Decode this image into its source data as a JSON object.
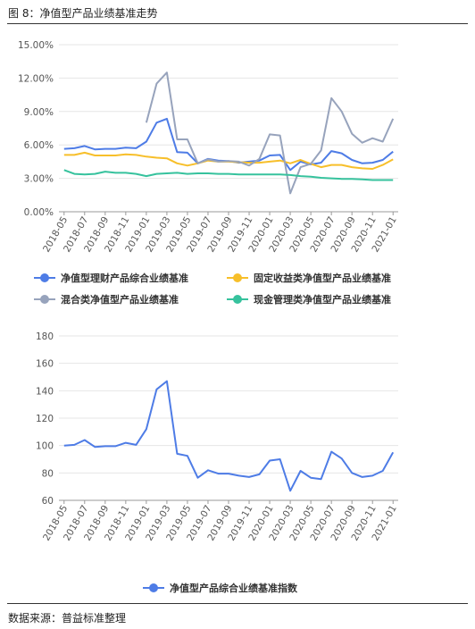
{
  "figure_title": "图 8：净值型产品业绩基准走势",
  "source": "数据来源：普益标准整理",
  "categories": [
    "2018-05",
    "2018-06",
    "2018-07",
    "2018-08",
    "2018-09",
    "2018-10",
    "2018-11",
    "2018-12",
    "2019-01",
    "2019-02",
    "2019-03",
    "2019-04",
    "2019-05",
    "2019-06",
    "2019-07",
    "2019-08",
    "2019-09",
    "2019-10",
    "2019-11",
    "2019-12",
    "2020-01",
    "2020-02",
    "2020-03",
    "2020-04",
    "2020-05",
    "2020-06",
    "2020-07",
    "2020-08",
    "2020-09",
    "2020-10",
    "2020-11",
    "2020-12",
    "2021-01"
  ],
  "chart_data": [
    {
      "type": "line",
      "ylim": [
        0,
        15
      ],
      "yticks": [
        "0.00%",
        "3.00%",
        "6.00%",
        "9.00%",
        "12.00%",
        "15.00%"
      ],
      "xticks": [
        "2018-05",
        "2018-07",
        "2018-09",
        "2018-11",
        "2019-01",
        "2019-03",
        "2019-05",
        "2019-07",
        "2019-09",
        "2019-11",
        "2020-01",
        "2020-03",
        "2020-05",
        "2020-07",
        "2020-09",
        "2020-11",
        "2021-01"
      ],
      "series": [
        {
          "name": "净值型理财产品综合业绩基准",
          "color": "#4e7ce6",
          "values": [
            5.65,
            5.7,
            5.9,
            5.6,
            5.65,
            5.65,
            5.75,
            5.7,
            6.3,
            8.0,
            8.35,
            5.35,
            5.3,
            4.35,
            4.75,
            4.6,
            4.55,
            4.4,
            4.5,
            4.6,
            5.05,
            5.1,
            3.75,
            4.5,
            4.25,
            4.4,
            5.45,
            5.25,
            4.65,
            4.35,
            4.4,
            4.65,
            5.4
          ]
        },
        {
          "name": "固定收益类净值型产品业绩基准",
          "color": "#f7bf2a",
          "values": [
            5.1,
            5.1,
            5.3,
            5.05,
            5.05,
            5.05,
            5.15,
            5.1,
            4.95,
            4.85,
            4.8,
            4.35,
            4.15,
            4.35,
            4.6,
            4.5,
            4.5,
            4.45,
            4.4,
            4.4,
            4.5,
            4.6,
            4.35,
            4.65,
            4.3,
            4.0,
            4.2,
            4.2,
            4.0,
            3.9,
            3.85,
            4.2,
            4.7
          ]
        },
        {
          "name": "混合类净值型产品业绩基准",
          "color": "#97a3bc",
          "values": [
            null,
            null,
            null,
            null,
            null,
            null,
            null,
            null,
            8.0,
            11.5,
            12.5,
            6.5,
            6.5,
            4.35,
            4.7,
            4.5,
            4.55,
            4.5,
            4.15,
            4.75,
            6.95,
            6.85,
            1.65,
            4.0,
            4.3,
            5.5,
            10.2,
            9.0,
            7.0,
            6.2,
            6.6,
            6.3,
            8.35
          ]
        },
        {
          "name": "现金管理类净值型产品业绩基准",
          "color": "#36c29d",
          "values": [
            3.75,
            3.4,
            3.35,
            3.4,
            3.6,
            3.5,
            3.5,
            3.4,
            3.2,
            3.4,
            3.45,
            3.5,
            3.4,
            3.45,
            3.45,
            3.4,
            3.4,
            3.35,
            3.35,
            3.35,
            3.35,
            3.35,
            3.3,
            3.2,
            3.15,
            3.05,
            3.0,
            2.95,
            2.95,
            2.9,
            2.85,
            2.85,
            2.85
          ]
        }
      ]
    },
    {
      "type": "line",
      "ylim": [
        60,
        180
      ],
      "yticks": [
        "60",
        "80",
        "100",
        "120",
        "140",
        "160",
        "180"
      ],
      "xticks": [
        "2018-05",
        "2018-07",
        "2018-09",
        "2018-11",
        "2019-01",
        "2019-03",
        "2019-05",
        "2019-07",
        "2019-09",
        "2019-11",
        "2020-01",
        "2020-03",
        "2020-05",
        "2020-07",
        "2020-09",
        "2020-11",
        "2021-01"
      ],
      "series": [
        {
          "name": "净值型产品综合业绩基准指数",
          "color": "#4e7ce6",
          "values": [
            100,
            100.5,
            104,
            99,
            99.5,
            99.5,
            102,
            100.5,
            112,
            141,
            147,
            94,
            92.5,
            76.5,
            82,
            79.5,
            79.5,
            78,
            77,
            79,
            89,
            90,
            67,
            81.5,
            76.5,
            75.5,
            95.5,
            90.5,
            80,
            77,
            78,
            81.5,
            95
          ]
        }
      ]
    }
  ]
}
